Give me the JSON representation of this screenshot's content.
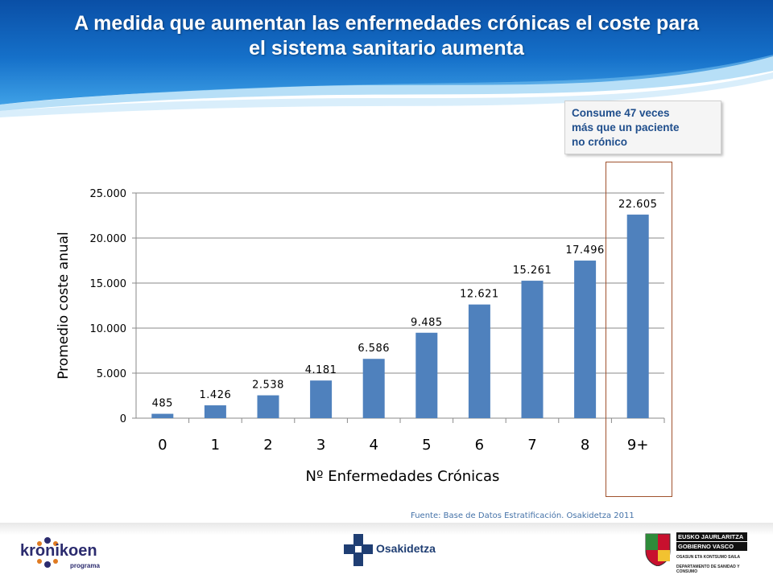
{
  "slide": {
    "title_line1": "A medida que aumentan las enfermedades crónicas el coste para",
    "title_line2": "el sistema sanitario aumenta",
    "callout_lines": [
      "Consume 47 veces",
      "más que un paciente",
      "no crónico"
    ],
    "source": "Fuente: Base de Datos Estratificación. Osakidetza 2011"
  },
  "colors": {
    "bar": "#4f81bd",
    "title_bg": "#0b5fb5",
    "highlight_border": "#a0522d",
    "callout_text": "#1f4e8c"
  },
  "chart_data": {
    "type": "bar",
    "categories": [
      "0",
      "1",
      "2",
      "3",
      "4",
      "5",
      "6",
      "7",
      "8",
      "9+"
    ],
    "values": [
      485,
      1426,
      2538,
      4181,
      6586,
      9485,
      12621,
      15261,
      17496,
      22605
    ],
    "data_labels": [
      "485",
      "1.426",
      "2.538",
      "4.181",
      "6.586",
      "9.485",
      "12.621",
      "15.261",
      "17.496",
      "22.605"
    ],
    "ylim": [
      0,
      25000
    ],
    "yticks": [
      0,
      5000,
      10000,
      15000,
      20000,
      25000
    ],
    "ytick_labels": [
      "0",
      "5.000",
      "10.000",
      "15.000",
      "20.000",
      "25.000"
    ],
    "xlabel": "Nº Enfermedades Crónicas",
    "ylabel": "Promedio coste anual",
    "grid": true,
    "highlighted_category": "9+"
  },
  "footer": {
    "kronikoen": "kronikoen",
    "kronikoen_sub": "programa",
    "osakidetza": "Osakidetza",
    "gv_line1": "EUSKO JAURLARITZA",
    "gv_line2": "GOBIERNO VASCO",
    "gv_small1": "OSASUN ETA KONTSUMO SAILA",
    "gv_small2": "DEPARTAMENTO DE SANIDAD Y CONSUMO"
  }
}
